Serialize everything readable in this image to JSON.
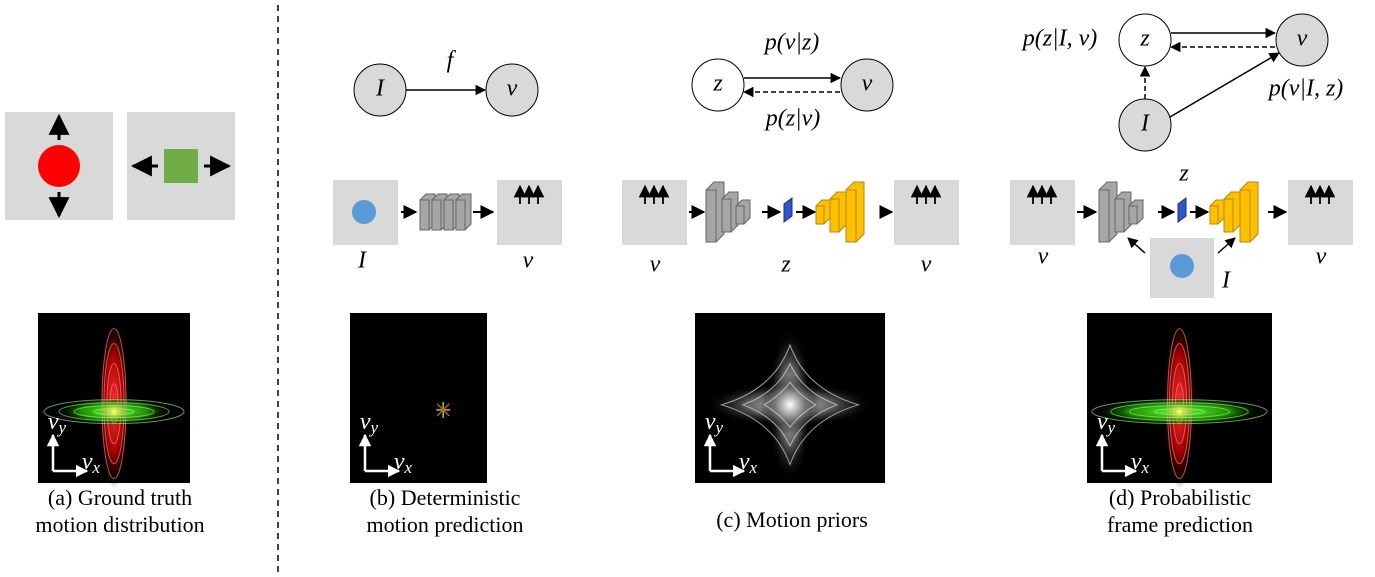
{
  "panels": {
    "a": {
      "axis_y": {
        "base": "v",
        "sub": "y"
      },
      "axis_x": {
        "base": "v",
        "sub": "x"
      },
      "caption": [
        "(a) Ground truth",
        "motion distribution"
      ]
    },
    "b": {
      "graph": {
        "nodes": [
          "I",
          "v"
        ],
        "edge_label": "f"
      },
      "input_label": "I",
      "output_label": "v",
      "axis_y": {
        "base": "v",
        "sub": "y"
      },
      "axis_x": {
        "base": "v",
        "sub": "x"
      },
      "caption": [
        "(b) Deterministic",
        "motion prediction"
      ]
    },
    "c": {
      "graph": {
        "nodes": [
          "z",
          "v"
        ],
        "edge_labels": [
          "p(v|z)",
          "p(z|v)"
        ]
      },
      "input_label": "v",
      "latent_label": "z",
      "output_label": "v",
      "axis_y": {
        "base": "v",
        "sub": "y"
      },
      "axis_x": {
        "base": "v",
        "sub": "x"
      },
      "caption": [
        "(c) Motion priors"
      ]
    },
    "d": {
      "graph": {
        "nodes": [
          "z",
          "v",
          "I"
        ],
        "edge_labels": [
          "p(z|I, v)",
          "p(v|I, z)"
        ]
      },
      "input_label": "v",
      "latent_label": "z",
      "condition_label": "I",
      "output_label": "v",
      "axis_y": {
        "base": "v",
        "sub": "y"
      },
      "axis_x": {
        "base": "v",
        "sub": "x"
      },
      "caption": [
        "(d) Probabilistic",
        "frame prediction"
      ]
    }
  }
}
